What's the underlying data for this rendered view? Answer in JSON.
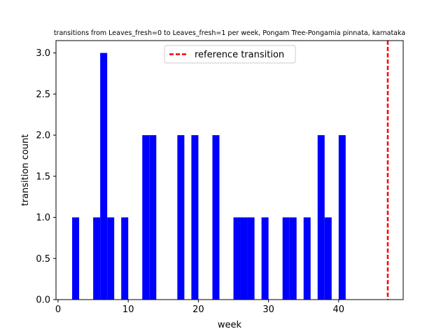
{
  "chart_data": {
    "type": "bar",
    "title": "transitions from Leaves_fresh=0 to Leaves_fresh=1 per week, Pongam Tree-Pongamia pinnata, karnataka",
    "xlabel": "week",
    "ylabel": "transition count",
    "xlim": [
      -0.3,
      49.2
    ],
    "ylim": [
      0,
      3.15
    ],
    "bin_width": 1,
    "bars": [
      {
        "x": 2,
        "value": 1
      },
      {
        "x": 5,
        "value": 1
      },
      {
        "x": 6,
        "value": 3
      },
      {
        "x": 7,
        "value": 1
      },
      {
        "x": 9,
        "value": 1
      },
      {
        "x": 12,
        "value": 2
      },
      {
        "x": 13,
        "value": 2
      },
      {
        "x": 17,
        "value": 2
      },
      {
        "x": 19,
        "value": 2
      },
      {
        "x": 22,
        "value": 2
      },
      {
        "x": 25,
        "value": 1
      },
      {
        "x": 26,
        "value": 1
      },
      {
        "x": 27,
        "value": 1
      },
      {
        "x": 29,
        "value": 1
      },
      {
        "x": 32,
        "value": 1
      },
      {
        "x": 33,
        "value": 1
      },
      {
        "x": 35,
        "value": 1
      },
      {
        "x": 37,
        "value": 2
      },
      {
        "x": 38,
        "value": 1
      },
      {
        "x": 40,
        "value": 2
      }
    ],
    "bar_color": "#0000ff",
    "reference_line": {
      "x": 47,
      "label": "reference transition",
      "color": "#ff0000",
      "style": "dashed"
    },
    "x_ticks": [
      0,
      10,
      20,
      30,
      40
    ],
    "x_tick_labels": [
      "0",
      "10",
      "20",
      "30",
      "40"
    ],
    "y_ticks": [
      0,
      0.5,
      1.0,
      1.5,
      2.0,
      2.5,
      3.0
    ],
    "y_tick_labels": [
      "0.0",
      "0.5",
      "1.0",
      "1.5",
      "2.0",
      "2.5",
      "3.0"
    ],
    "legend": {
      "placement": "top-center",
      "entries": [
        "reference transition"
      ]
    },
    "grid": false
  }
}
